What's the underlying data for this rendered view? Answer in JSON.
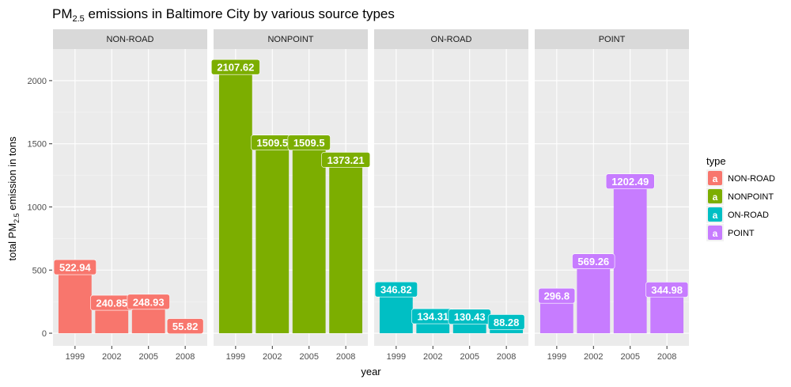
{
  "chart_data": {
    "type": "bar",
    "title": {
      "prefix": "PM",
      "subscript": "2.5",
      "suffix": " emissions in Baltimore City by various source types"
    },
    "xlabel": "year",
    "ylabel": {
      "prefix": "total PM",
      "subscript": "2.5",
      "suffix": " emission in tons"
    },
    "ylim": [
      -100,
      2250
    ],
    "yticks": [
      "0",
      "500",
      "1000",
      "1500",
      "2000"
    ],
    "categories": [
      "1999",
      "2002",
      "2005",
      "2008"
    ],
    "facets": [
      {
        "name": "NON-ROAD",
        "color": "#F8766D",
        "values": [
          522.94,
          240.85,
          248.93,
          55.82
        ],
        "labels": [
          "522.94",
          "240.85",
          "248.93",
          "55.82"
        ]
      },
      {
        "name": "NONPOINT",
        "color": "#7CAE00",
        "values": [
          2107.62,
          1509.5,
          1509.5,
          1373.21
        ],
        "labels": [
          "2107.62",
          "1509.5",
          "1509.5",
          "1373.21"
        ]
      },
      {
        "name": "ON-ROAD",
        "color": "#00BFC4",
        "values": [
          346.82,
          134.31,
          130.43,
          88.28
        ],
        "labels": [
          "346.82",
          "134.31",
          "130.43",
          "88.28"
        ]
      },
      {
        "name": "POINT",
        "color": "#C77CFF",
        "values": [
          296.8,
          569.26,
          1202.49,
          344.98
        ],
        "labels": [
          "296.8",
          "569.26",
          "1202.49",
          "344.98"
        ]
      }
    ],
    "legend": {
      "title": "type",
      "key_letter": "a",
      "placement": "right"
    },
    "grid": true
  }
}
